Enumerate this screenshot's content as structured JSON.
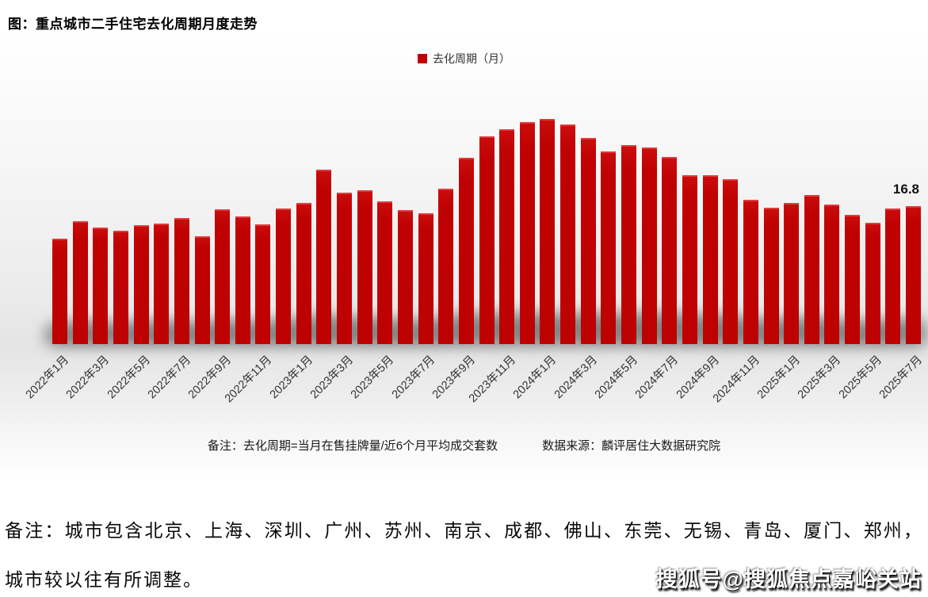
{
  "title": "图：重点城市二手住宅去化周期月度走势",
  "legend": {
    "label": "去化周期（月）",
    "color": "#c00101"
  },
  "chart_data": {
    "type": "bar",
    "title": "重点城市二手住宅去化周期月度走势",
    "series_name": "去化周期（月）",
    "bar_color": "#c00101",
    "legend_position": "top-center",
    "grid": false,
    "y_axis_visible": false,
    "ylim": [
      0,
      28
    ],
    "x_tick_step": 2,
    "last_value_label": "16.8",
    "categories": [
      "2022年1月",
      "2022年2月",
      "2022年3月",
      "2022年4月",
      "2022年5月",
      "2022年6月",
      "2022年7月",
      "2022年8月",
      "2022年9月",
      "2022年10月",
      "2022年11月",
      "2022年12月",
      "2023年1月",
      "2023年2月",
      "2023年3月",
      "2023年4月",
      "2023年5月",
      "2023年6月",
      "2023年7月",
      "2023年8月",
      "2023年9月",
      "2023年10月",
      "2023年11月",
      "2023年12月",
      "2024年1月",
      "2024年2月",
      "2024年3月",
      "2024年4月",
      "2024年5月",
      "2024年6月",
      "2024年7月",
      "2024年8月",
      "2024年9月",
      "2024年10月",
      "2024年11月",
      "2024年12月",
      "2025年1月",
      "2025年2月",
      "2025年3月",
      "2025年4月",
      "2025年5月",
      "2025年6月",
      "2025年7月"
    ],
    "values": [
      12.8,
      15.0,
      14.2,
      13.8,
      14.5,
      14.7,
      15.3,
      13.1,
      16.4,
      15.5,
      14.6,
      16.5,
      17.2,
      21.2,
      18.4,
      18.7,
      17.4,
      16.3,
      15.9,
      18.9,
      22.7,
      25.3,
      26.2,
      27.0,
      27.4,
      26.7,
      25.1,
      23.5,
      24.2,
      23.9,
      22.8,
      20.6,
      20.6,
      20.1,
      17.6,
      16.6,
      17.2,
      18.1,
      17.0,
      15.7,
      14.8,
      16.5,
      16.8
    ]
  },
  "notes": {
    "formula": "备注：去化周期=当月在售挂牌量/近6个月平均成交套数",
    "source": "数据来源：麟评居住大数据研究院"
  },
  "footnote": {
    "line1": "备注：城市包含北京、上海、深圳、广州、苏州、南京、成都、佛山、东莞、无锡、青岛、厦门、郑州，",
    "line2": "城市较以往有所调整。"
  },
  "watermark": "搜狐号@搜狐焦点嘉峪关站"
}
